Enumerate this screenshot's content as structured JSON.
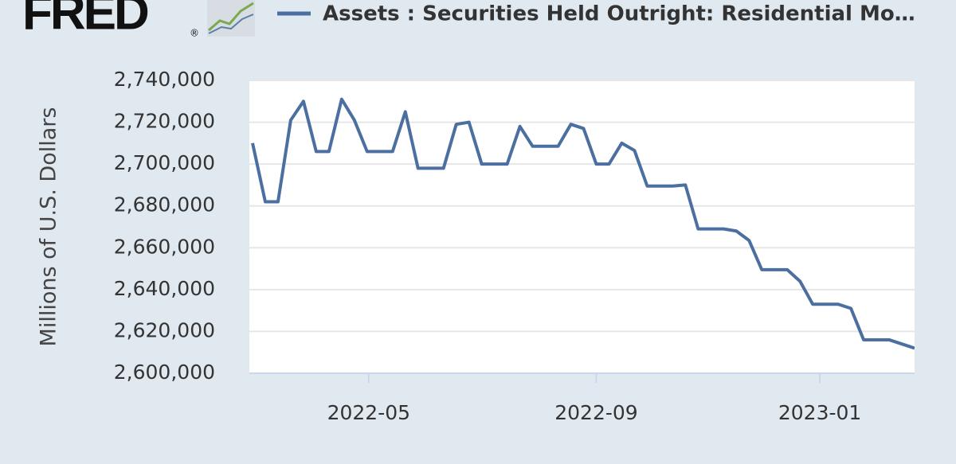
{
  "logo": "FRED",
  "logo_mark": "®",
  "chart_data": {
    "type": "line",
    "title": "Assets : Securities Held Outright: Residential Mo…",
    "y_label": "Millions of U.S. Dollars",
    "series": [
      {
        "name": "Assets : Securities Held Outright: Residential Mo…",
        "color": "#4b6fa0",
        "values": [
          2710000,
          2682000,
          2682000,
          2721000,
          2730000,
          2706000,
          2706000,
          2731000,
          2721000,
          2706000,
          2706000,
          2706000,
          2725000,
          2698000,
          2698000,
          2698000,
          2719000,
          2720000,
          2700000,
          2700000,
          2700000,
          2718000,
          2708500,
          2708500,
          2708500,
          2719000,
          2717000,
          2700000,
          2700000,
          2710000,
          2706500,
          2689500,
          2689500,
          2689500,
          2690000,
          2669000,
          2669000,
          2669000,
          2668000,
          2663500,
          2649500,
          2649500,
          2649500,
          2644000,
          2633000,
          2633000,
          2633000,
          2631000,
          2616000,
          2616000,
          2616000,
          2614000,
          2612000
        ]
      }
    ],
    "xlim": [
      -0.25,
      52
    ],
    "xticks": [
      {
        "value": 9.125,
        "label": "2022-05"
      },
      {
        "value": 27,
        "label": "2022-09"
      },
      {
        "value": 44.56,
        "label": "2023-01"
      }
    ],
    "ylim": [
      2600000,
      2740000
    ],
    "yticks": [
      {
        "value": 2600000,
        "label": "2,600,000"
      },
      {
        "value": 2620000,
        "label": "2,620,000"
      },
      {
        "value": 2640000,
        "label": "2,640,000"
      },
      {
        "value": 2660000,
        "label": "2,660,000"
      },
      {
        "value": 2680000,
        "label": "2,680,000"
      },
      {
        "value": 2700000,
        "label": "2,700,000"
      },
      {
        "value": 2720000,
        "label": "2,720,000"
      },
      {
        "value": 2740000,
        "label": "2,740,000"
      }
    ],
    "grid": true
  }
}
